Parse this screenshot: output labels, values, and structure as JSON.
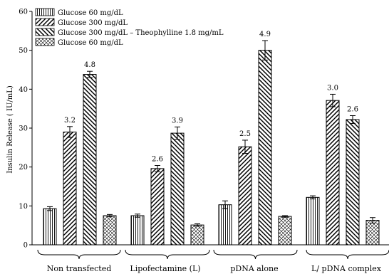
{
  "chart_data": {
    "type": "bar",
    "ylabel": "Insulin Release (  IU/mL)",
    "xlabel": "",
    "ylim": [
      0,
      60
    ],
    "yticks": [
      0,
      10,
      20,
      30,
      40,
      50,
      60
    ],
    "legend_position": "top-left",
    "categories": [
      "Non transfected",
      "Lipofectamine (L)",
      "pDNA alone",
      "L/ pDNA complex"
    ],
    "series": [
      {
        "name": "Glucose 60 mg/dL",
        "pattern": "vertical",
        "values": [
          9.3,
          7.5,
          10.3,
          12.2
        ],
        "errors": [
          0.5,
          0.4,
          1.0,
          0.4
        ]
      },
      {
        "name": "Glucose 300 mg/dL",
        "pattern": "diag-right",
        "values": [
          29.0,
          19.6,
          25.2,
          37.1
        ],
        "errors": [
          1.4,
          0.8,
          1.7,
          1.6
        ]
      },
      {
        "name": "Glucose 300 mg/dL – Theophylline 1.8 mg/mL",
        "pattern": "diag-left",
        "values": [
          43.8,
          28.7,
          50.0,
          32.2
        ],
        "errors": [
          0.8,
          1.6,
          2.5,
          1.0
        ]
      },
      {
        "name": "Glucose 60 mg/dL",
        "pattern": "crosshatch",
        "values": [
          7.5,
          5.1,
          7.3,
          6.3
        ],
        "errors": [
          0.3,
          0.3,
          0.2,
          0.7
        ]
      }
    ],
    "annotations": [
      {
        "category": 0,
        "series": 1,
        "text": "3.2"
      },
      {
        "category": 0,
        "series": 2,
        "text": "4.8"
      },
      {
        "category": 1,
        "series": 1,
        "text": "2.6"
      },
      {
        "category": 1,
        "series": 2,
        "text": "3.9"
      },
      {
        "category": 2,
        "series": 1,
        "text": "2.5"
      },
      {
        "category": 2,
        "series": 2,
        "text": "4.9"
      },
      {
        "category": 3,
        "series": 1,
        "text": "3.0"
      },
      {
        "category": 3,
        "series": 2,
        "text": "2.6"
      }
    ]
  }
}
